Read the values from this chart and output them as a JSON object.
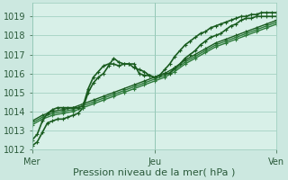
{
  "xlabel": "Pression niveau de la mer( hPa )",
  "bg_color": "#cce8e0",
  "plot_bg_color": "#d8f0e8",
  "grid_color": "#99ccbb",
  "xlim": [
    0,
    48
  ],
  "ylim": [
    1012,
    1019.7
  ],
  "yticks": [
    1012,
    1013,
    1014,
    1015,
    1016,
    1017,
    1018,
    1019
  ],
  "xtick_positions": [
    0,
    24,
    48
  ],
  "xtick_labels": [
    "Mer",
    "Jeu",
    "Ven"
  ],
  "series": [
    {
      "color": "#1a5c20",
      "linewidth": 1.2,
      "marker": "+",
      "markersize": 3.5,
      "x": [
        0,
        1,
        2,
        3,
        4,
        5,
        6,
        7,
        8,
        9,
        10,
        11,
        12,
        13,
        14,
        15,
        16,
        17,
        18,
        19,
        20,
        21,
        22,
        23,
        24,
        25,
        26,
        27,
        28,
        29,
        30,
        31,
        32,
        33,
        34,
        35,
        36,
        37,
        38,
        39,
        40,
        41,
        42,
        43,
        44,
        45,
        46,
        47,
        48
      ],
      "y": [
        1012.2,
        1012.4,
        1012.9,
        1013.4,
        1013.5,
        1013.6,
        1013.6,
        1013.7,
        1013.8,
        1013.9,
        1014.2,
        1015.0,
        1015.5,
        1015.8,
        1016.0,
        1016.4,
        1016.8,
        1016.6,
        1016.5,
        1016.5,
        1016.3,
        1016.2,
        1016.1,
        1015.9,
        1015.8,
        1015.9,
        1016.2,
        1016.5,
        1016.9,
        1017.2,
        1017.5,
        1017.7,
        1017.9,
        1018.1,
        1018.2,
        1018.4,
        1018.5,
        1018.6,
        1018.7,
        1018.8,
        1018.9,
        1019.0,
        1019.0,
        1019.1,
        1019.1,
        1019.2,
        1019.2,
        1019.2,
        1019.2
      ]
    },
    {
      "color": "#1a5c20",
      "linewidth": 1.0,
      "marker": "+",
      "markersize": 3.5,
      "x": [
        0,
        2,
        4,
        6,
        8,
        10,
        12,
        14,
        16,
        18,
        20,
        22,
        24,
        26,
        28,
        30,
        32,
        34,
        36,
        38,
        40,
        42,
        44,
        46,
        48
      ],
      "y": [
        1013.5,
        1013.8,
        1014.0,
        1014.1,
        1014.2,
        1014.4,
        1014.6,
        1014.8,
        1015.0,
        1015.2,
        1015.4,
        1015.6,
        1015.8,
        1016.0,
        1016.3,
        1016.7,
        1017.0,
        1017.3,
        1017.6,
        1017.8,
        1018.0,
        1018.2,
        1018.4,
        1018.6,
        1018.8
      ]
    },
    {
      "color": "#2d7a3a",
      "linewidth": 1.0,
      "marker": "+",
      "markersize": 3.5,
      "x": [
        0,
        2,
        4,
        6,
        8,
        10,
        12,
        14,
        16,
        18,
        20,
        22,
        24,
        26,
        28,
        30,
        32,
        34,
        36,
        38,
        40,
        42,
        44,
        46,
        48
      ],
      "y": [
        1013.4,
        1013.7,
        1013.9,
        1014.0,
        1014.1,
        1014.3,
        1014.5,
        1014.7,
        1014.9,
        1015.1,
        1015.3,
        1015.5,
        1015.7,
        1015.9,
        1016.2,
        1016.6,
        1016.9,
        1017.2,
        1017.5,
        1017.7,
        1017.9,
        1018.1,
        1018.3,
        1018.5,
        1018.7
      ]
    },
    {
      "color": "#2d7a3a",
      "linewidth": 1.0,
      "marker": "+",
      "markersize": 3.5,
      "x": [
        0,
        2,
        4,
        6,
        8,
        10,
        12,
        14,
        16,
        18,
        20,
        22,
        24,
        26,
        28,
        30,
        32,
        34,
        36,
        38,
        40,
        42,
        44,
        46,
        48
      ],
      "y": [
        1013.3,
        1013.6,
        1013.8,
        1013.9,
        1014.0,
        1014.2,
        1014.4,
        1014.6,
        1014.8,
        1015.0,
        1015.2,
        1015.4,
        1015.6,
        1015.8,
        1016.1,
        1016.5,
        1016.8,
        1017.1,
        1017.4,
        1017.6,
        1017.8,
        1018.0,
        1018.2,
        1018.4,
        1018.6
      ]
    },
    {
      "color": "#1a5c20",
      "linewidth": 1.2,
      "marker": "+",
      "markersize": 3.5,
      "x": [
        0,
        1,
        2,
        3,
        4,
        5,
        6,
        7,
        8,
        9,
        10,
        11,
        12,
        13,
        14,
        15,
        16,
        17,
        18,
        19,
        20,
        21,
        22,
        23,
        24,
        25,
        26,
        27,
        28,
        29,
        30,
        31,
        32,
        33,
        34,
        35,
        36,
        37,
        38,
        39,
        40,
        41,
        42,
        43,
        44,
        45,
        46,
        47,
        48
      ],
      "y": [
        1012.5,
        1012.8,
        1013.5,
        1013.9,
        1014.1,
        1014.2,
        1014.2,
        1014.2,
        1014.2,
        1014.2,
        1014.3,
        1015.2,
        1015.8,
        1016.1,
        1016.4,
        1016.5,
        1016.5,
        1016.4,
        1016.5,
        1016.5,
        1016.5,
        1016.0,
        1015.9,
        1015.9,
        1015.8,
        1015.9,
        1016.0,
        1016.0,
        1016.3,
        1016.5,
        1016.8,
        1017.0,
        1017.2,
        1017.5,
        1017.7,
        1017.9,
        1018.0,
        1018.1,
        1018.3,
        1018.5,
        1018.6,
        1018.8,
        1018.9,
        1018.9,
        1019.0,
        1019.0,
        1019.0,
        1019.0,
        1019.0
      ]
    }
  ],
  "xlabel_fontsize": 8,
  "tick_fontsize": 7
}
